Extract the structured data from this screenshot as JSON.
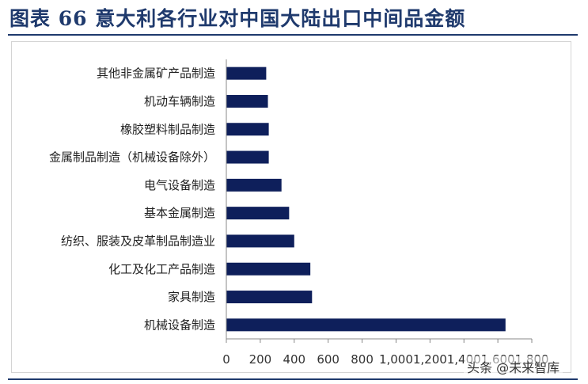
{
  "header": {
    "title": "图表 66    意大利各行业对中国大陆出口中间品金额"
  },
  "watermark": "头条 @未来智库",
  "colors": {
    "bar": "#0e1f5b",
    "title": "#1f3a6d"
  },
  "chart_data": {
    "type": "bar",
    "orientation": "horizontal",
    "categories": [
      "其他非金属矿产品制造",
      "机动车辆制造",
      "橡胶塑料制品制造",
      "金属制品制造（机械设备除外）",
      "电气设备制造",
      "基本金属制造",
      "纺织、服装及皮革制品制造业",
      "化工及化工产品制造",
      "家具制造",
      "机械设备制造"
    ],
    "values": [
      235,
      245,
      250,
      250,
      325,
      370,
      400,
      495,
      505,
      1645
    ],
    "xlim": [
      0,
      1800
    ],
    "xticks": [
      "0",
      "200",
      "400",
      "600",
      "800",
      "1,000",
      "1,200",
      "1,400",
      "1,600",
      "1,800"
    ],
    "grid": false,
    "legend": "none",
    "title": "",
    "xlabel": "",
    "ylabel": ""
  }
}
